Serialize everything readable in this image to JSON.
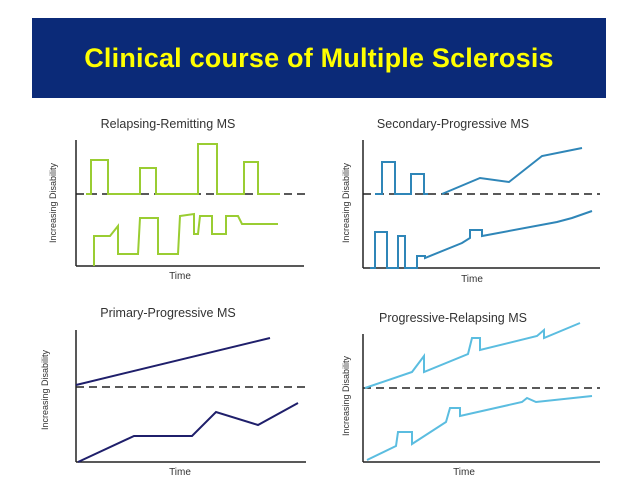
{
  "title": "Clinical course of Multiple Sclerosis",
  "colors": {
    "title_background": "#0b2a78",
    "title_text": "#ffff00",
    "relapsing_remitting": "#9acd32",
    "secondary_progressive": "#2f86b8",
    "primary_progressive": "#1f1f6b",
    "progressive_relapsing": "#5bbde0"
  },
  "panels": [
    {
      "id": "relapsing-remitting",
      "title": "Relapsing-Remitting MS",
      "ylabel": "Increasing Disability",
      "xlabel": "Time"
    },
    {
      "id": "secondary-progressive",
      "title": "Secondary-Progressive MS",
      "ylabel": "Increasing Disability",
      "xlabel": "Time"
    },
    {
      "id": "primary-progressive",
      "title": "Primary-Progressive MS",
      "ylabel": "Increasing Disability",
      "xlabel": "Time"
    },
    {
      "id": "progressive-relapsing",
      "title": "Progressive-Relapsing MS",
      "ylabel": "Increasing Disability",
      "xlabel": "Time"
    }
  ]
}
